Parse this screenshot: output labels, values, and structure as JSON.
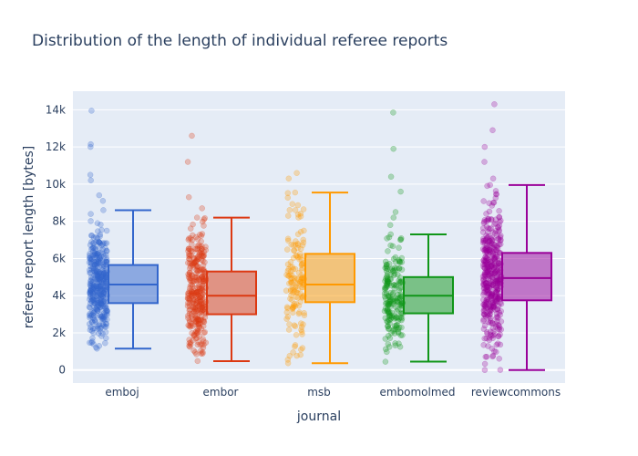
{
  "chart_data": {
    "type": "box",
    "title": "Distribution of the length of individual referee reports",
    "xlabel": "journal",
    "ylabel": "referee report length [bytes]",
    "ylim": [
      -700,
      15000
    ],
    "y_ticks": [
      0,
      2000,
      4000,
      6000,
      8000,
      10000,
      12000,
      14000
    ],
    "y_tick_labels": [
      "0",
      "2k",
      "4k",
      "6k",
      "8k",
      "10k",
      "12k",
      "14k"
    ],
    "grid": true,
    "plot_bg": "#e5ecf6",
    "categories": [
      "emboj",
      "embor",
      "msb",
      "embomolmed",
      "reviewcommons"
    ],
    "series": [
      {
        "category": "emboj",
        "color": "#3366cc",
        "lower_fence": 1150,
        "q1": 3600,
        "median": 4600,
        "q3": 5650,
        "upper_fence": 8600,
        "n_points": 380,
        "outliers": [
          9100,
          9400,
          10200,
          10500,
          12000,
          12150,
          13950
        ]
      },
      {
        "category": "embor",
        "color": "#dc3912",
        "lower_fence": 480,
        "q1": 3000,
        "median": 4000,
        "q3": 5300,
        "upper_fence": 8200,
        "n_points": 320,
        "outliers": [
          8700,
          9300,
          11200,
          12600
        ]
      },
      {
        "category": "msb",
        "color": "#ff9900",
        "lower_fence": 370,
        "q1": 3650,
        "median": 4600,
        "q3": 6250,
        "upper_fence": 9550,
        "n_points": 150,
        "outliers": [
          10300,
          10600
        ]
      },
      {
        "category": "embomolmed",
        "color": "#109618",
        "lower_fence": 450,
        "q1": 3050,
        "median": 4000,
        "q3": 5000,
        "upper_fence": 7300,
        "n_points": 200,
        "outliers": [
          7800,
          8200,
          8500,
          9600,
          10400,
          11900,
          13850
        ]
      },
      {
        "category": "reviewcommons",
        "color": "#990099",
        "lower_fence": 0,
        "q1": 3750,
        "median": 4950,
        "q3": 6300,
        "upper_fence": 9950,
        "n_points": 420,
        "outliers": [
          10300,
          11200,
          12000,
          12900,
          14300
        ]
      }
    ]
  }
}
